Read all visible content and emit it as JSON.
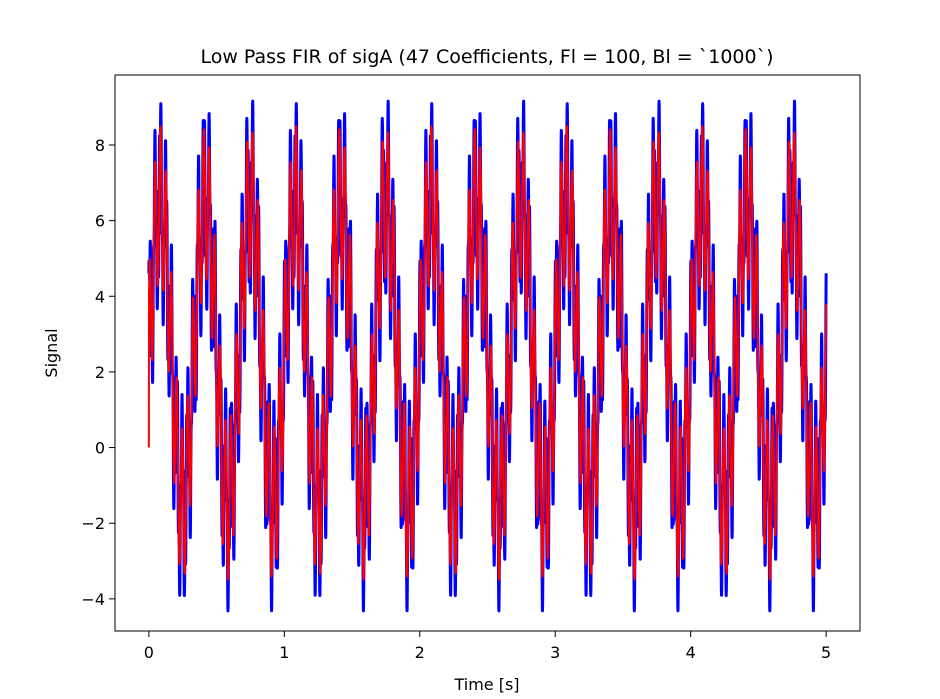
{
  "chart_data": {
    "type": "line",
    "title": "Low Pass FIR of sigA (47 Coefficients, Fl = 100, Bl = `1000`)",
    "xlabel": "Time [s]",
    "ylabel": "Signal",
    "xlim": [
      -0.25,
      5.25
    ],
    "ylim": [
      -4.85,
      9.85
    ],
    "x_ticks": [
      0,
      1,
      2,
      3,
      4,
      5
    ],
    "x_tick_labels": [
      "0",
      "1",
      "2",
      "3",
      "4",
      "5"
    ],
    "y_ticks": [
      -4,
      -2,
      0,
      2,
      4,
      6,
      8
    ],
    "y_tick_labels": [
      "−4",
      "−2",
      "0",
      "2",
      "4",
      "6",
      "8"
    ],
    "grid": false,
    "legend": "none",
    "x_range": [
      0,
      5
    ],
    "series": [
      {
        "color": "#0000ff",
        "description_points": {
          "offset": 2.5,
          "components": [
            {
              "amplitude": 4.0,
              "frequency_hz": 3.0
            },
            {
              "amplitude": 2.2,
              "frequency_hz": 25.0
            },
            {
              "amplitude": 0.7,
              "frequency_hz": 90.0
            }
          ]
        }
      },
      {
        "color": "#ff0000",
        "starts_at": 0,
        "description_points": {
          "offset": 2.5,
          "components": [
            {
              "amplitude": 4.0,
              "frequency_hz": 3.0
            },
            {
              "amplitude": 2.0,
              "frequency_hz": 25.0
            }
          ]
        }
      }
    ]
  }
}
